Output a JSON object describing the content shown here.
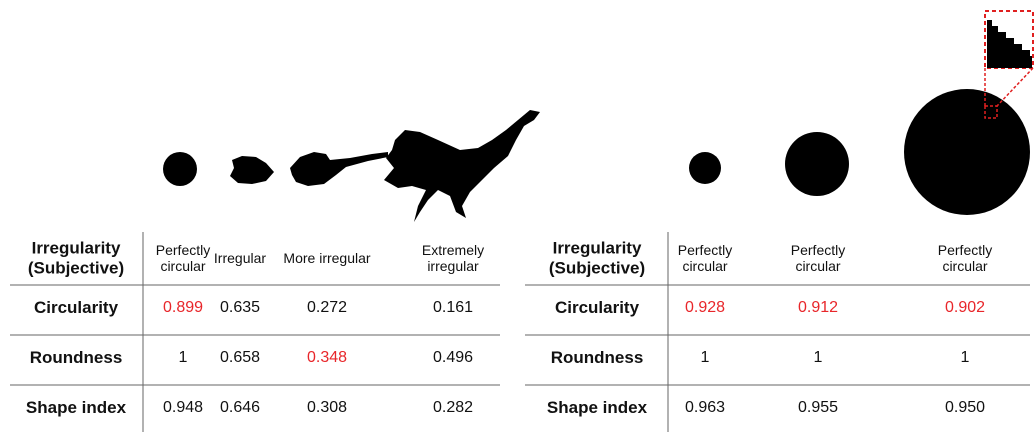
{
  "highlight_color": "#e8262a",
  "tables": [
    {
      "header": {
        "label": "Irregularity (Subjective)",
        "columns": [
          "Perfectly circular",
          "Irregular",
          "More irregular",
          "Extremely irregular"
        ]
      },
      "rows": [
        {
          "label": "Circularity",
          "values": [
            "0.899",
            "0.635",
            "0.272",
            "0.161"
          ],
          "highlight": [
            0
          ]
        },
        {
          "label": "Roundness",
          "values": [
            "1",
            "0.658",
            "0.348",
            "0.496"
          ],
          "highlight": [
            2
          ]
        },
        {
          "label": "Shape index",
          "values": [
            "0.948",
            "0.646",
            "0.308",
            "0.282"
          ],
          "highlight": []
        }
      ]
    },
    {
      "header": {
        "label": "Irregularity (Subjective)",
        "columns": [
          "Perfectly circular",
          "Perfectly circular",
          "Perfectly circular"
        ]
      },
      "rows": [
        {
          "label": "Circularity",
          "values": [
            "0.928",
            "0.912",
            "0.902"
          ],
          "highlight": [
            0,
            1,
            2
          ]
        },
        {
          "label": "Roundness",
          "values": [
            "1",
            "1",
            "1"
          ],
          "highlight": []
        },
        {
          "label": "Shape index",
          "values": [
            "0.963",
            "0.955",
            "0.950"
          ],
          "highlight": []
        }
      ]
    }
  ]
}
